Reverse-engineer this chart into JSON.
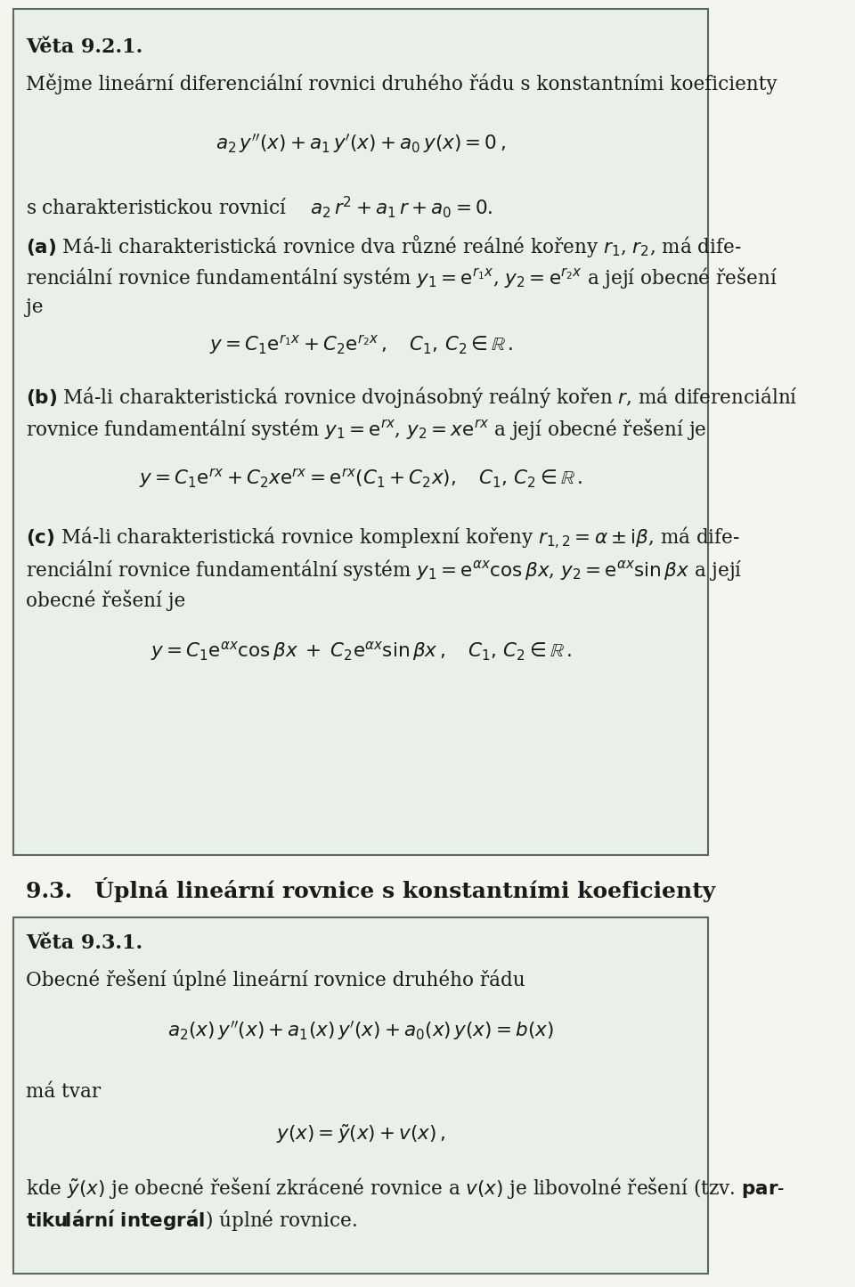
{
  "bg_color": "#f0f4f0",
  "box1_bg": "#e8f0e8",
  "box2_bg": "#e8f0e8",
  "border_color": "#5a6a5a",
  "text_color": "#1a1a1a",
  "page_bg": "#f5f5f0",
  "section_heading": "9.3.  Úplná lineární rovnice s konstantními koeficienty",
  "veta1_title": "Věta 9.2.1.",
  "veta2_title": "Věta 9.3.1."
}
